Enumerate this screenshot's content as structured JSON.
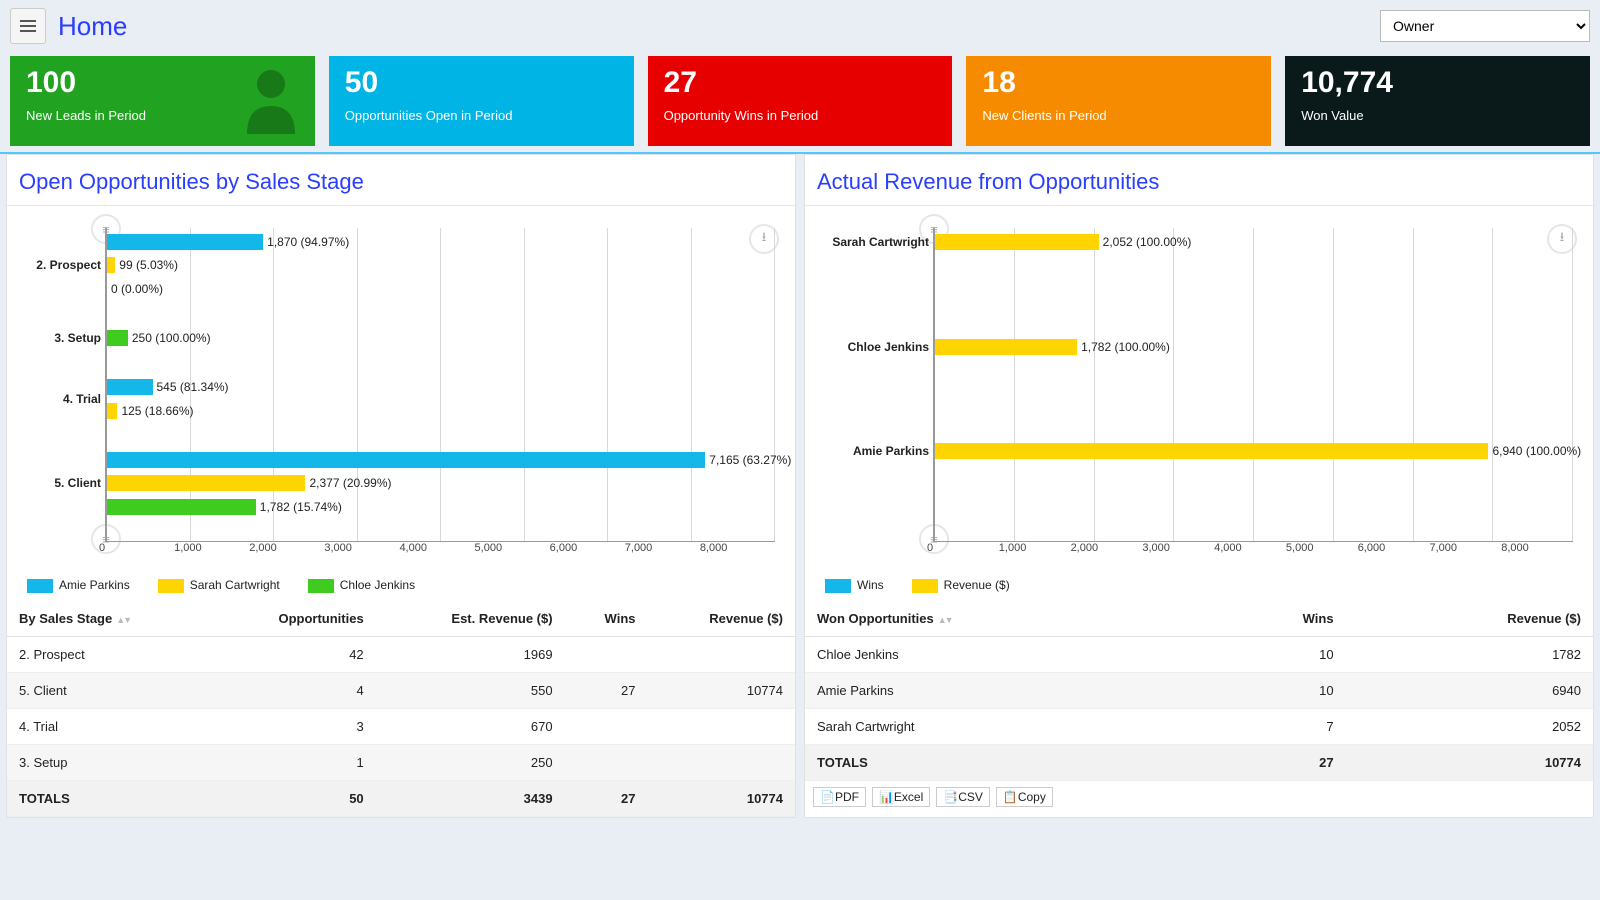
{
  "header": {
    "title": "Home",
    "owner_dropdown_selected": "Owner"
  },
  "kpi": [
    {
      "value": "100",
      "label": "New Leads in Period",
      "color": "#21a321",
      "icon": "person"
    },
    {
      "value": "50",
      "label": "Opportunities Open in Period",
      "color": "#00b4e6"
    },
    {
      "value": "27",
      "label": "Opportunity Wins in Period",
      "color": "#e60000"
    },
    {
      "value": "18",
      "label": "New Clients in Period",
      "color": "#f68b00"
    },
    {
      "value": "10,774",
      "label": "Won Value",
      "color": "#0a1a1a"
    }
  ],
  "colors": {
    "amie": "#14b8e8",
    "sarah": "#ffd400",
    "chloe": "#3fcc1f",
    "wins": "#14b8e8",
    "revenue": "#ffd400",
    "grid": "#d8d8d8",
    "axis": "#999999"
  },
  "left_panel": {
    "title": "Open Opportunities by Sales Stage",
    "chart": {
      "type": "grouped-horizontal-bar",
      "xmax": 8000,
      "xtick_step": 1000,
      "xticks": [
        "0",
        "1,000",
        "2,000",
        "3,000",
        "4,000",
        "5,000",
        "6,000",
        "7,000",
        "8,000"
      ],
      "categories": [
        {
          "label": "2. Prospect",
          "bars": [
            {
              "series": "amie",
              "value": 1870,
              "text": "1,870 (94.97%)"
            },
            {
              "series": "sarah",
              "value": 99,
              "text": "99 (5.03%)"
            },
            {
              "series": "chloe",
              "value": 0,
              "text": "0 (0.00%)"
            }
          ]
        },
        {
          "label": "3. Setup",
          "bars": [
            {
              "series": "chloe",
              "value": 250,
              "text": "250 (100.00%)"
            }
          ]
        },
        {
          "label": "4. Trial",
          "bars": [
            {
              "series": "amie",
              "value": 545,
              "text": "545 (81.34%)"
            },
            {
              "series": "sarah",
              "value": 125,
              "text": "125 (18.66%)"
            }
          ]
        },
        {
          "label": "5. Client",
          "bars": [
            {
              "series": "amie",
              "value": 7165,
              "text": "7,165 (63.27%)"
            },
            {
              "series": "sarah",
              "value": 2377,
              "text": "2,377 (20.99%)"
            },
            {
              "series": "chloe",
              "value": 1782,
              "text": "1,782 (15.74%)"
            }
          ]
        }
      ],
      "legend": [
        {
          "key": "amie",
          "label": "Amie Parkins"
        },
        {
          "key": "sarah",
          "label": "Sarah Cartwright"
        },
        {
          "key": "chloe",
          "label": "Chloe Jenkins"
        }
      ]
    },
    "table": {
      "columns": [
        "By Sales Stage",
        "Opportunities",
        "Est. Revenue ($)",
        "Wins",
        "Revenue ($)"
      ],
      "rows": [
        [
          "2. Prospect",
          "42",
          "1969",
          "",
          ""
        ],
        [
          "5. Client",
          "4",
          "550",
          "27",
          "10774"
        ],
        [
          "4. Trial",
          "3",
          "670",
          "",
          ""
        ],
        [
          "3. Setup",
          "1",
          "250",
          "",
          ""
        ]
      ],
      "totals": [
        "TOTALS",
        "50",
        "3439",
        "27",
        "10774"
      ]
    }
  },
  "right_panel": {
    "title": "Actual Revenue from Opportunities",
    "chart": {
      "type": "horizontal-bar",
      "xmax": 8000,
      "xtick_step": 1000,
      "xticks": [
        "0",
        "1,000",
        "2,000",
        "3,000",
        "4,000",
        "5,000",
        "6,000",
        "7,000",
        "8,000"
      ],
      "categories": [
        {
          "label": "Sarah Cartwright",
          "bars": [
            {
              "series": "revenue",
              "value": 2052,
              "text": "2,052 (100.00%)"
            }
          ]
        },
        {
          "label": "Chloe Jenkins",
          "bars": [
            {
              "series": "revenue",
              "value": 1782,
              "text": "1,782 (100.00%)"
            }
          ]
        },
        {
          "label": "Amie Parkins",
          "bars": [
            {
              "series": "revenue",
              "value": 6940,
              "text": "6,940 (100.00%)"
            }
          ]
        }
      ],
      "legend": [
        {
          "key": "wins",
          "label": "Wins"
        },
        {
          "key": "revenue",
          "label": "Revenue ($)"
        }
      ]
    },
    "table": {
      "columns": [
        "Won Opportunities",
        "Wins",
        "Revenue ($)"
      ],
      "rows": [
        [
          "Chloe Jenkins",
          "10",
          "1782"
        ],
        [
          "Amie Parkins",
          "10",
          "6940"
        ],
        [
          "Sarah Cartwright",
          "7",
          "2052"
        ]
      ],
      "totals": [
        "TOTALS",
        "27",
        "10774"
      ]
    },
    "export_buttons": [
      "PDF",
      "Excel",
      "CSV",
      "Copy"
    ]
  }
}
